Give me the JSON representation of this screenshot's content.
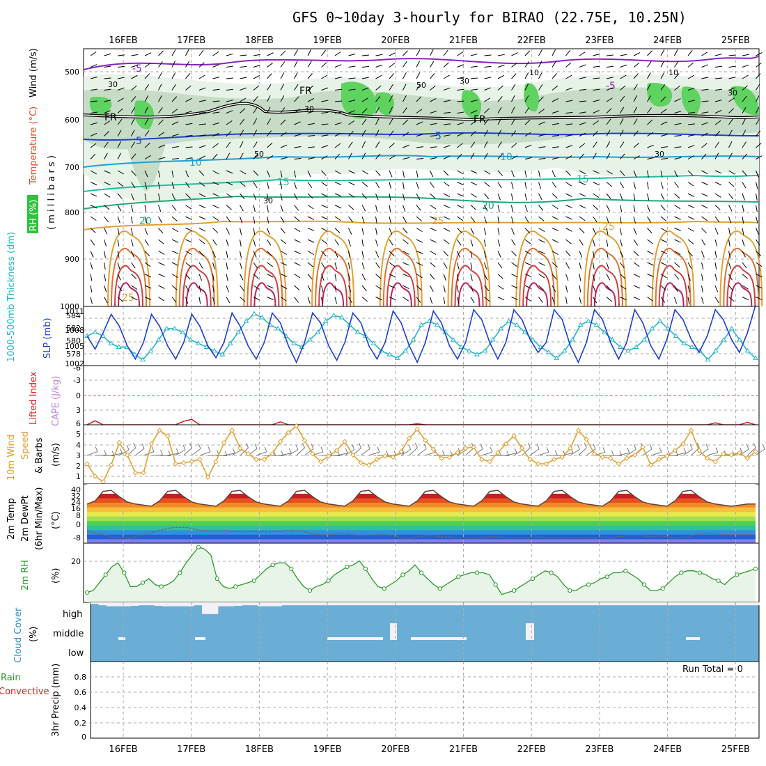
{
  "title": "GFS 0~10day 3-hourly for BIRAO (22.75E, 10.25N)",
  "dates": [
    "16FEB",
    "17FEB",
    "18FEB",
    "19FEB",
    "20FEB",
    "21FEB",
    "22FEB",
    "23FEB",
    "24FEB",
    "25FEB"
  ],
  "colors": {
    "wind": "#000000",
    "temp_label": "#e04a2a",
    "rh_green": "#2fc23c",
    "slp": "#1c3fd0",
    "thickness": "#22b5c8",
    "lifted_index": "#d62020",
    "cape": "#c080e0",
    "wind_speed": "#e0a030",
    "dewpt": "#806060",
    "rh2m": "#2a9a2a",
    "cloud": "#6aaed6",
    "precip_total": "#2a9a2a",
    "precip_conv": "#d62020"
  },
  "panels": {
    "upper": {
      "labels": {
        "wind": "Wind (m/s)",
        "temperature": "Temperature (°C)",
        "rh": "RH (%)",
        "millibars": "( m i l l i b a r s )"
      },
      "y_ticks": [
        "500",
        "600",
        "700",
        "800",
        "900",
        "1000"
      ],
      "contour_labels": {
        "fr": [
          "FR",
          "FR",
          "FR"
        ],
        "minus5": [
          "-5",
          "-5"
        ],
        "t5": [
          "5",
          "5"
        ],
        "t10": [
          "10",
          "10"
        ],
        "t15": [
          "15",
          "15"
        ],
        "t20": [
          "20",
          "20"
        ],
        "t25": [
          "25",
          "25",
          "25"
        ],
        "rh30": [
          "30",
          "30",
          "30",
          "30",
          "30",
          "30"
        ],
        "rh50": [
          "50",
          "50"
        ],
        "rh10": [
          "10",
          "10"
        ]
      }
    },
    "slp": {
      "label_thickness": "1000-500mb Thickness (dm)",
      "label_slp": "SLP (mb)",
      "y_ticks_left": [
        "584",
        "582",
        "580",
        "578"
      ],
      "y_ticks_right": [
        "1011",
        "1008",
        "1005",
        "1002"
      ]
    },
    "lifted": {
      "label_li": "Lifted Index",
      "label_cape": "CAPE (J/kg)",
      "y_ticks": [
        "-6",
        "-3",
        "0",
        "3",
        "6"
      ]
    },
    "wind10m": {
      "label_a": "10m Wind",
      "label_b": "Speed",
      "label_c": "& Barbs",
      "label_d": "(m/s)",
      "y_ticks": [
        "5",
        "4",
        "3",
        "2",
        "1"
      ]
    },
    "temp2m": {
      "label_a": "2m Temp",
      "label_b": "2m DewPt",
      "label_c": "(6hr Min/Max)",
      "label_d": "(°C)",
      "y_ticks": [
        "40",
        "32",
        "24",
        "16",
        "8",
        "0",
        "-8"
      ]
    },
    "rh2m": {
      "label_a": "2m RH",
      "label_b": "(%)",
      "y_ticks": [
        "20"
      ]
    },
    "cloud": {
      "label_a": "Cloud Cover",
      "label_b": "(%)",
      "levels": [
        "high",
        "middle",
        "low"
      ]
    },
    "precip": {
      "label_a": "Total / Rain",
      "label_b": "Convective",
      "label_c": "3hr Precip (mm)",
      "run_total": "Run Total = 0",
      "y_ticks": [
        "0.8",
        "0.6",
        "0.4",
        "0.2",
        "0"
      ]
    }
  },
  "chart_data": [
    {
      "type": "line",
      "title": "SLP (mb)",
      "ylim": [
        1002,
        1011
      ],
      "series": [
        {
          "name": "SLP (mb)",
          "values": [
            1006.5,
            1004.5,
            1007,
            1009.8,
            1008,
            1005,
            1003,
            1005.5,
            1009.8,
            1008,
            1005,
            1003,
            1005.5,
            1009.8,
            1008,
            1005,
            1003.2,
            1005.5,
            1010,
            1008,
            1005,
            1003,
            1005.5,
            1010,
            1008.5,
            1005,
            1002.5,
            1005.5,
            1010,
            1008.5,
            1005,
            1002.8,
            1005.5,
            1010,
            1008.5,
            1005,
            1003,
            1005.5,
            1010.3,
            1008.5,
            1005,
            1002.5,
            1005.5,
            1010.3,
            1008.5,
            1005,
            1003,
            1005.5,
            1010.5,
            1009,
            1005.5,
            1003,
            1005.5,
            1010.5,
            1009,
            1006,
            1004,
            1005.5,
            1010.5,
            1009,
            1005,
            1002.5,
            1005.5,
            1010.5,
            1009,
            1005.5,
            1003,
            1005.5,
            1010.5,
            1008.5,
            1005,
            1003,
            1006,
            1010.5,
            1009,
            1006,
            1004,
            1006.5,
            1010.5,
            1009,
            1006,
            1004,
            1007,
            1011.2
          ]
        }
      ]
    },
    {
      "type": "line",
      "title": "1000-500mb Thickness (dm)",
      "ylim": [
        577,
        585
      ],
      "series": [
        {
          "name": "1000-500mb Thickness (dm)",
          "values": [
            581,
            581.5,
            581,
            580,
            579.5,
            579.5,
            578.5,
            577.8,
            579,
            580.5,
            582,
            582,
            581.5,
            580.5,
            580,
            579.5,
            579,
            578.5,
            580,
            581.5,
            583,
            584,
            583.5,
            582.5,
            582,
            581,
            580,
            579.5,
            580.5,
            581.5,
            583,
            583.8,
            583.5,
            582.5,
            581.5,
            581,
            580,
            579,
            578.5,
            578,
            579,
            580.5,
            582.5,
            583,
            582.5,
            581.5,
            580.5,
            579.5,
            579,
            578.5,
            579,
            580.5,
            582,
            583,
            582.5,
            581.5,
            580.5,
            579.5,
            578.8,
            578,
            579,
            580.5,
            582.5,
            583,
            582.5,
            581.5,
            580.5,
            579.5,
            579,
            579.5,
            580.5,
            582,
            583,
            582,
            581,
            580,
            579.5,
            579,
            577.8,
            579,
            580.5,
            582,
            580.5,
            579,
            578
          ]
        }
      ]
    },
    {
      "type": "line",
      "title": "Lifted Index",
      "ylim": [
        -6,
        6
      ],
      "series": [
        {
          "name": "Lifted Index",
          "values": [
            6,
            5.2,
            6,
            6,
            6,
            6,
            6,
            6,
            6,
            6,
            6,
            6,
            5.3,
            4.9,
            6,
            6,
            6,
            6,
            6,
            6,
            6,
            6,
            6,
            6,
            5.4,
            6,
            6,
            6,
            6,
            6,
            6,
            6,
            6,
            6,
            6,
            6,
            6,
            6,
            6,
            6,
            6,
            5.8,
            6,
            6,
            6,
            6,
            6,
            6,
            6,
            6,
            6,
            6,
            6,
            6,
            6,
            6,
            6,
            6,
            6,
            6,
            6,
            6,
            6,
            6,
            6,
            6,
            6,
            6,
            6,
            6,
            6,
            6,
            6,
            6,
            6,
            6,
            6,
            6,
            5.6,
            6,
            6,
            6,
            5.5,
            6
          ]
        }
      ]
    },
    {
      "type": "line",
      "title": "10m Wind Speed & Barbs (m/s)",
      "ylim": [
        0.5,
        5.8
      ],
      "series": [
        {
          "name": "Speed",
          "values": [
            2.3,
            1.2,
            0.7,
            2.2,
            4.2,
            3.1,
            1.5,
            1.5,
            4.1,
            5.3,
            4.8,
            2.3,
            2.4,
            2.5,
            2.7,
            1.1,
            2.5,
            4.2,
            5.3,
            3.7,
            3.2,
            2.7,
            2.7,
            3.2,
            4.3,
            5.1,
            5.7,
            4.4,
            3.2,
            2.5,
            3,
            3.5,
            4.3,
            3.1,
            2.4,
            2.2,
            2.7,
            3,
            2.9,
            3.4,
            4.6,
            5.4,
            4.4,
            3.6,
            2.8,
            2.9,
            3.3,
            3.7,
            3.8,
            2.7,
            2.5,
            3.3,
            4.1,
            4.8,
            3.7,
            2.7,
            2.3,
            2.3,
            2.7,
            2.9,
            3.7,
            5.3,
            4.5,
            3.2,
            2.9,
            2.8,
            2.3,
            2.8,
            3.1,
            3.8,
            2.2,
            2.7,
            3,
            3.5,
            4.1,
            5.3,
            3.5,
            2.8,
            2.5,
            3.2,
            3.1,
            3.3,
            2.8,
            3.4
          ]
        }
      ]
    },
    {
      "type": "line",
      "title": "2m Temp / 2m DewPt (°C)",
      "ylim": [
        -12,
        44
      ],
      "series": [
        {
          "name": "2m Temp",
          "values": [
            25,
            28,
            37,
            38,
            32,
            27,
            25,
            24,
            23,
            28,
            37,
            38,
            32,
            27,
            25,
            24,
            23,
            28,
            37,
            38,
            32,
            27,
            25,
            24,
            23,
            28,
            37,
            38,
            32,
            27,
            25,
            24,
            23,
            28,
            37,
            38,
            32,
            27,
            25,
            24,
            23,
            28,
            37,
            38,
            32,
            27,
            25,
            24,
            23,
            28,
            37,
            38,
            32,
            27,
            25,
            24,
            23,
            28,
            37,
            38,
            32,
            27,
            25,
            24,
            23,
            28,
            37,
            38,
            32,
            27,
            25,
            24,
            23,
            28,
            37,
            38,
            32,
            27,
            25,
            24,
            23,
            24,
            25,
            25
          ]
        },
        {
          "name": "2m DewPt",
          "values": [
            -1,
            -2,
            -4,
            -6,
            -7,
            -8,
            -6,
            -4,
            -2,
            0,
            2,
            3,
            3,
            2,
            0,
            0,
            -1,
            0,
            -1,
            -1,
            -1,
            -1,
            -1,
            -1,
            -1,
            0,
            0,
            -1,
            -3,
            -4,
            -4,
            -3,
            -3,
            -4,
            -5,
            -5,
            -4,
            -4,
            -5,
            -7,
            -8,
            -6,
            -5,
            -5,
            -6,
            -6,
            -7,
            -7,
            -8,
            -7,
            -6,
            -6,
            -7,
            -7,
            -7,
            -7,
            -6,
            -7,
            -7,
            -7,
            -7,
            -7,
            -7,
            -7,
            -6,
            -7,
            -6,
            -5,
            -5,
            -5,
            -6,
            -5,
            -6,
            -7,
            -7,
            -5,
            -3,
            -3,
            -3,
            -4,
            -4,
            -4,
            -4,
            -4
          ]
        }
      ]
    },
    {
      "type": "line",
      "title": "2m RH (%)",
      "ylim": [
        0,
        30
      ],
      "series": [
        {
          "name": "2m RH",
          "values": [
            5,
            6,
            10,
            14,
            18,
            20,
            15,
            8,
            8,
            10,
            12,
            9,
            8,
            9,
            11,
            15,
            20,
            24,
            28,
            27,
            24,
            12,
            8,
            7,
            8,
            9,
            10,
            11,
            14,
            17,
            19,
            20,
            20,
            17,
            12,
            8,
            6,
            8,
            9,
            11,
            14,
            16,
            18,
            19,
            21,
            17,
            12,
            8,
            7,
            9,
            11,
            14,
            16,
            19,
            15,
            12,
            9,
            7,
            9,
            11,
            13,
            14,
            15,
            15,
            15,
            14,
            9,
            4,
            5,
            6,
            8,
            10,
            12,
            14,
            16,
            15,
            13,
            9,
            6,
            6,
            8,
            9,
            10,
            12,
            13,
            15,
            15,
            16,
            14,
            12,
            9,
            6,
            6,
            7,
            10,
            13,
            15,
            16,
            16,
            15,
            14,
            12,
            11,
            9,
            12,
            14,
            15,
            16,
            17
          ]
        }
      ]
    },
    {
      "type": "area",
      "title": "Cloud Cover (%)",
      "series": [
        {
          "name": "high",
          "values": [
            92,
            85,
            80,
            80,
            80,
            82,
            85,
            85,
            82,
            80,
            80,
            80,
            80,
            85,
            40,
            40,
            80,
            80,
            82,
            85,
            85,
            80,
            80,
            80,
            85,
            85,
            85,
            85,
            85,
            85,
            85,
            85,
            85,
            85,
            85,
            85,
            85,
            85,
            85,
            85,
            85,
            85,
            85,
            85,
            85,
            85,
            85,
            85,
            85,
            85,
            85,
            85,
            85,
            85,
            85,
            85,
            85,
            85,
            85,
            85,
            85,
            85,
            85,
            85,
            85,
            85,
            85,
            85,
            85,
            85,
            85,
            85,
            85,
            85,
            85,
            85,
            85,
            85,
            85,
            85,
            85,
            85,
            85,
            85
          ]
        }
      ]
    },
    {
      "type": "bar",
      "title": "3hr Precip (mm)",
      "ylim": [
        0,
        0.9
      ],
      "series": [
        {
          "name": "Total / Rain",
          "values": []
        },
        {
          "name": "Convective",
          "values": []
        }
      ]
    }
  ]
}
